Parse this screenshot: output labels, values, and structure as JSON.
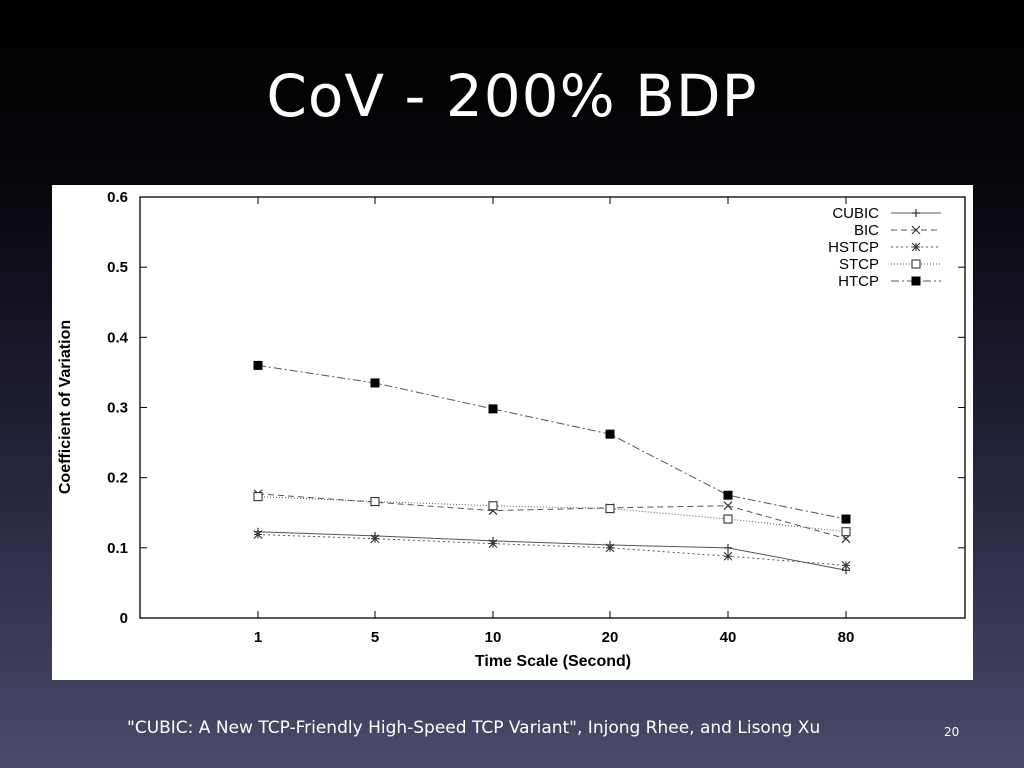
{
  "slide": {
    "title": "CoV - 200% BDP",
    "citation": "\"CUBIC: A New TCP-Friendly High-Speed TCP Variant\", Injong Rhee, and Lisong Xu",
    "page_number": "20"
  },
  "chart_data": {
    "type": "line",
    "title": "",
    "xlabel": "Time Scale (Second)",
    "ylabel": "Coefficient of Variation",
    "categories": [
      "1",
      "5",
      "10",
      "20",
      "40",
      "80"
    ],
    "ylim": [
      0,
      0.6
    ],
    "yticks": [
      "0",
      "0.1",
      "0.2",
      "0.3",
      "0.4",
      "0.5",
      "0.6"
    ],
    "grid": false,
    "legend_position": "top-right",
    "series": [
      {
        "name": "CUBIC",
        "values": [
          0.123,
          0.117,
          0.11,
          0.104,
          0.1,
          0.068
        ],
        "marker": "plus",
        "dash": "solid",
        "color": "#555555"
      },
      {
        "name": "BIC",
        "values": [
          0.177,
          0.165,
          0.153,
          0.157,
          0.16,
          0.113
        ],
        "marker": "x",
        "dash": "dashed",
        "color": "#555555"
      },
      {
        "name": "HSTCP",
        "values": [
          0.119,
          0.113,
          0.106,
          0.1,
          0.088,
          0.075
        ],
        "marker": "star",
        "dash": "dotted",
        "color": "#555555"
      },
      {
        "name": "STCP",
        "values": [
          0.173,
          0.166,
          0.16,
          0.156,
          0.141,
          0.123
        ],
        "marker": "square-open",
        "dash": "dotted-fine",
        "color": "#555555"
      },
      {
        "name": "HTCP",
        "values": [
          0.36,
          0.335,
          0.298,
          0.262,
          0.175,
          0.141
        ],
        "marker": "square-filled",
        "dash": "dash-dot",
        "color": "#555555"
      }
    ]
  }
}
